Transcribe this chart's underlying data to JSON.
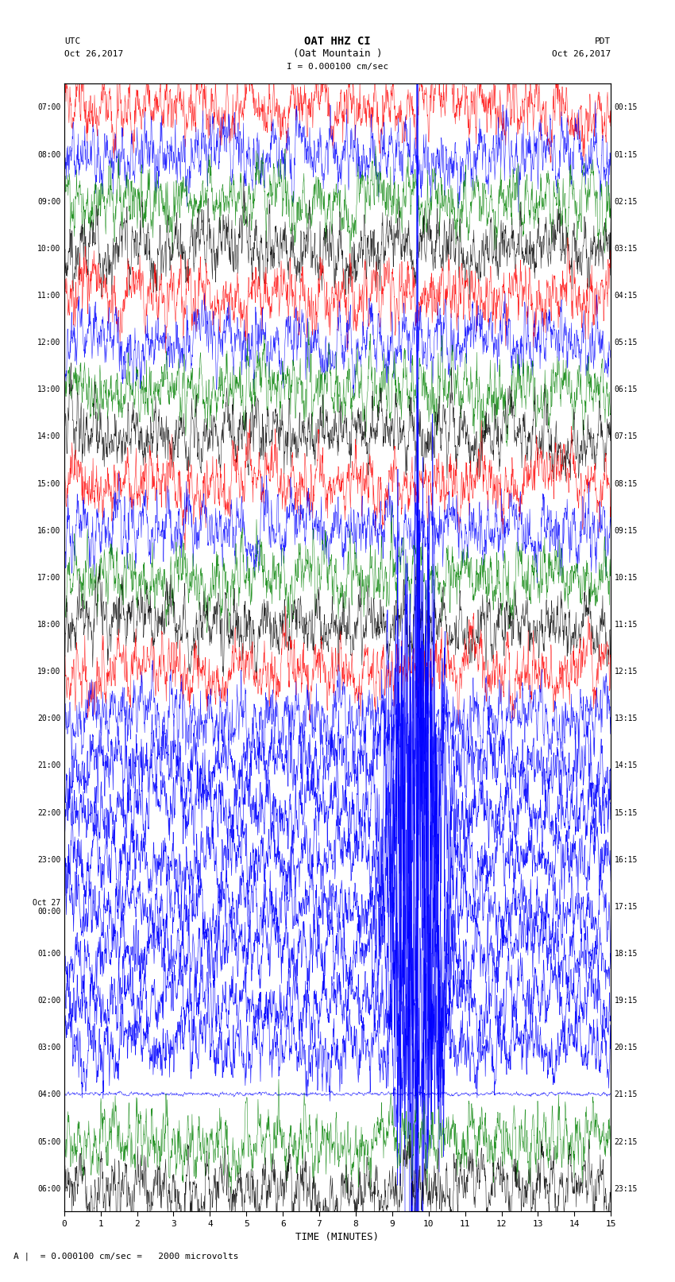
{
  "title_line1": "OAT HHZ CI",
  "title_line2": "(Oat Mountain )",
  "title_line3": "I = 0.000100 cm/sec",
  "left_header_line1": "UTC",
  "left_header_line2": "Oct 26,2017",
  "right_header_line1": "PDT",
  "right_header_line2": "Oct 26,2017",
  "xlabel": "TIME (MINUTES)",
  "footer_text": "A |  = 0.000100 cm/sec =   2000 microvolts",
  "n_traces": 24,
  "display_minutes": 15,
  "bg_color": "white",
  "trace_colors_cycle": [
    "red",
    "blue",
    "green",
    "black"
  ],
  "left_time_labels": [
    "07:00",
    "08:00",
    "09:00",
    "10:00",
    "11:00",
    "12:00",
    "13:00",
    "14:00",
    "15:00",
    "16:00",
    "17:00",
    "18:00",
    "19:00",
    "20:00",
    "21:00",
    "22:00",
    "23:00",
    "Oct 27\n00:00",
    "01:00",
    "02:00",
    "03:00",
    "04:00",
    "05:00",
    "06:00"
  ],
  "right_time_labels": [
    "00:15",
    "01:15",
    "02:15",
    "03:15",
    "04:15",
    "05:15",
    "06:15",
    "07:15",
    "08:15",
    "09:15",
    "10:15",
    "11:15",
    "12:15",
    "13:15",
    "14:15",
    "15:15",
    "16:15",
    "17:15",
    "18:15",
    "19:15",
    "20:15",
    "21:15",
    "22:15",
    "23:15"
  ],
  "event_col_blue": 9.67,
  "event_col_red": 3.83,
  "event_blue_traces": [
    14,
    15,
    16,
    17,
    18,
    19,
    20
  ],
  "event_red_traces": [
    15,
    16,
    17
  ],
  "flat_trace": [
    21
  ],
  "fig_width": 8.5,
  "fig_height": 16.13,
  "dpi": 100
}
